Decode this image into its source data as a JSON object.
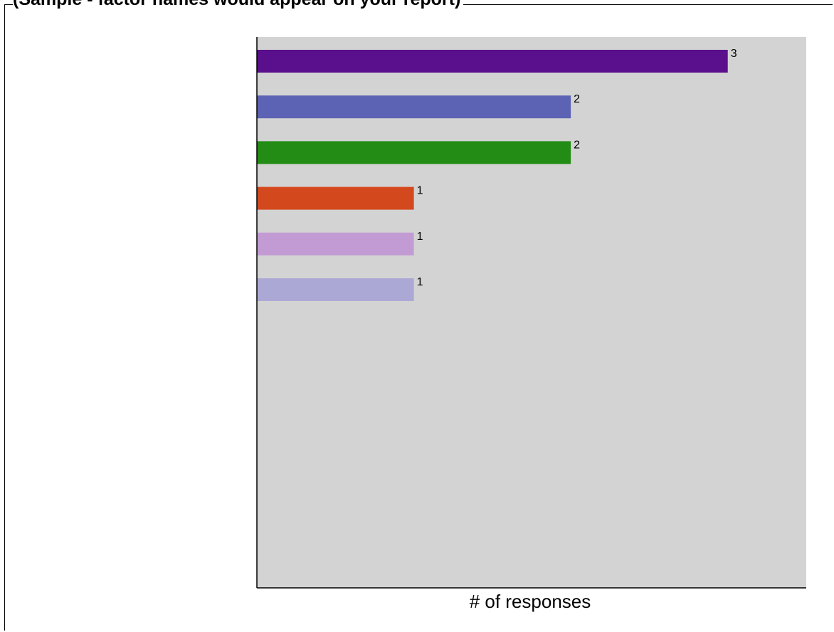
{
  "chart_data": {
    "type": "bar",
    "orientation": "horizontal",
    "title": "(Sample - factor names would appear on your report)",
    "xlabel": "# of responses",
    "ylabel": "",
    "xlim": [
      0,
      3.5
    ],
    "categories": [
      "",
      "",
      "",
      "",
      "",
      ""
    ],
    "values": [
      3,
      2,
      2,
      1,
      1,
      1
    ],
    "data_labels": [
      "3",
      "2",
      "2",
      "1",
      "1",
      "1"
    ],
    "bar_colors": [
      "#5a0f8c",
      "#5c62b4",
      "#228c14",
      "#d4481e",
      "#c39bd4",
      "#aca8d6"
    ],
    "plot_background": "#d3d3d3",
    "grid": false,
    "legend": "none"
  }
}
